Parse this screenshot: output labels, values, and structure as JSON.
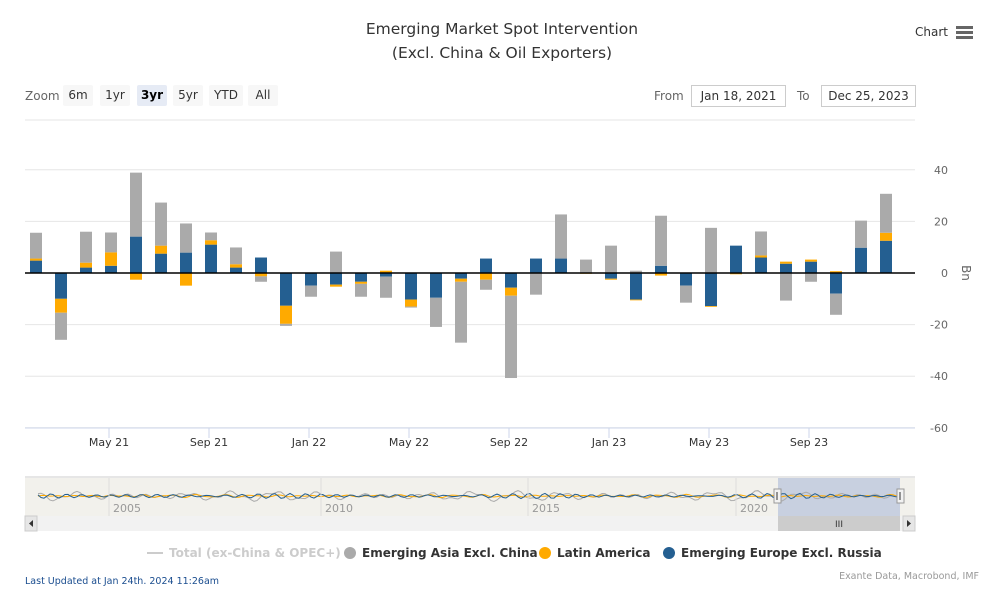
{
  "header": {
    "title_line1": "Emerging Market Spot Intervention",
    "title_line2": "(Excl. China & Oil Exporters)",
    "menu_label": "Chart"
  },
  "range_selector": {
    "zoom_label": "Zoom",
    "buttons": [
      "6m",
      "1yr",
      "3yr",
      "5yr",
      "YTD",
      "All"
    ],
    "selected": "3yr",
    "from_label": "From",
    "from_value": "Jan 18, 2021",
    "to_label": "To",
    "to_value": "Dec 25, 2023"
  },
  "colors": {
    "asia": "#aaaaaa",
    "latam": "#ffaa00",
    "europe": "#245f91",
    "total": "#cccccc"
  },
  "chart_data": {
    "type": "bar",
    "stacked": true,
    "categories": [
      "Jan 21",
      "Feb 21",
      "Mar 21",
      "Apr 21",
      "May 21",
      "Jun 21",
      "Jul 21",
      "Aug 21",
      "Sep 21",
      "Oct 21",
      "Nov 21",
      "Dec 21",
      "Jan 22",
      "Feb 22",
      "Mar 22",
      "Apr 22",
      "May 22",
      "Jun 22",
      "Jul 22",
      "Aug 22",
      "Sep 22",
      "Oct 22",
      "Nov 22",
      "Dec 22",
      "Jan 23",
      "Feb 23",
      "Mar 23",
      "Apr 23",
      "May 23",
      "Jun 23",
      "Jul 23",
      "Aug 23",
      "Sep 23",
      "Oct 23",
      "Nov 23"
    ],
    "x_tick_labels": [
      "May 21",
      "Sep 21",
      "Jan 22",
      "May 22",
      "Sep 22",
      "Jan 23",
      "May 23",
      "Sep 23"
    ],
    "y_ticks": [
      40,
      20,
      0,
      -20,
      -40,
      -60
    ],
    "ylim": [
      -60,
      40
    ],
    "ylabel": "Bn",
    "grid": true,
    "legend_position": "bottom",
    "series": [
      {
        "name": "Emerging Europe Excl. Russia",
        "values": [
          4.8,
          -10,
          2.1,
          2.8,
          14.1,
          7.5,
          7.9,
          11,
          2.1,
          6,
          -12.7,
          -4.9,
          -4.5,
          -3.4,
          -1.4,
          -10.3,
          -9.6,
          -2.2,
          5.6,
          -5.7,
          5.6,
          5.6,
          0,
          -2.2,
          -10.3,
          2.8,
          -4.9,
          -12.8,
          10.6,
          6,
          3.6,
          4.4,
          -8,
          9.8,
          12.5
        ]
      },
      {
        "name": "Latin America",
        "values": [
          0.8,
          -5.4,
          1.9,
          5.2,
          -2.6,
          3.1,
          -4.9,
          1.7,
          1.3,
          -1.3,
          -7,
          0,
          -0.8,
          -0.8,
          0.9,
          -2.7,
          0,
          -1.2,
          -2.6,
          -3.1,
          0,
          0,
          -0.3,
          -0.4,
          -0.3,
          -1,
          0,
          -0.3,
          -0.5,
          0.8,
          0.8,
          0.8,
          0.7,
          0,
          3.1
        ]
      },
      {
        "name": "Emerging Asia Excl. China",
        "values": [
          10,
          -10.5,
          12,
          7.7,
          24.8,
          16.7,
          11.3,
          3,
          6.5,
          -2.1,
          -0.8,
          -4.3,
          8.3,
          -5,
          -8.2,
          -0.4,
          -11.3,
          -23.6,
          -3.9,
          -31.9,
          -8.4,
          17.1,
          5.2,
          10.6,
          0.9,
          19.4,
          -6.6,
          17.5,
          0,
          9.3,
          -10.7,
          -3.4,
          -8.2,
          10.5,
          15.1
        ]
      }
    ],
    "legend": [
      "Total (ex-China & OPEC+)",
      "Emerging Asia Excl. China",
      "Latin America",
      "Emerging Europe Excl. Russia"
    ],
    "total_series_hidden": true
  },
  "navigator": {
    "year_labels": [
      "2005",
      "2010",
      "2015",
      "2020"
    ]
  },
  "footer": {
    "last_updated": "Last Updated at Jan 24th. 2024 11:26am",
    "source": "Exante Data, Macrobond, IMF"
  }
}
